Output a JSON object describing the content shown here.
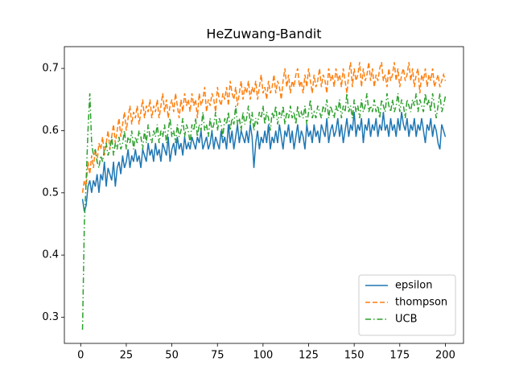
{
  "chart_data": {
    "type": "line",
    "title": "HeZuwang-Bandit",
    "x": [
      1,
      2,
      3,
      4,
      5,
      6,
      7,
      8,
      9,
      10,
      11,
      12,
      13,
      14,
      15,
      16,
      17,
      18,
      19,
      20,
      21,
      22,
      23,
      24,
      25,
      26,
      27,
      28,
      29,
      30,
      31,
      32,
      33,
      34,
      35,
      36,
      37,
      38,
      39,
      40,
      41,
      42,
      43,
      44,
      45,
      46,
      47,
      48,
      49,
      50,
      51,
      52,
      53,
      54,
      55,
      56,
      57,
      58,
      59,
      60,
      61,
      62,
      63,
      64,
      65,
      66,
      67,
      68,
      69,
      70,
      71,
      72,
      73,
      74,
      75,
      76,
      77,
      78,
      79,
      80,
      81,
      82,
      83,
      84,
      85,
      86,
      87,
      88,
      89,
      90,
      91,
      92,
      93,
      94,
      95,
      96,
      97,
      98,
      99,
      100,
      101,
      102,
      103,
      104,
      105,
      106,
      107,
      108,
      109,
      110,
      111,
      112,
      113,
      114,
      115,
      116,
      117,
      118,
      119,
      120,
      121,
      122,
      123,
      124,
      125,
      126,
      127,
      128,
      129,
      130,
      131,
      132,
      133,
      134,
      135,
      136,
      137,
      138,
      139,
      140,
      141,
      142,
      143,
      144,
      145,
      146,
      147,
      148,
      149,
      150,
      151,
      152,
      153,
      154,
      155,
      156,
      157,
      158,
      159,
      160,
      161,
      162,
      163,
      164,
      165,
      166,
      167,
      168,
      169,
      170,
      171,
      172,
      173,
      174,
      175,
      176,
      177,
      178,
      179,
      180,
      181,
      182,
      183,
      184,
      185,
      186,
      187,
      188,
      189,
      190,
      191,
      192,
      193,
      194,
      195,
      196,
      197,
      198,
      199,
      200
    ],
    "series": [
      {
        "name": "epsilon",
        "color": "#1f77b4",
        "linestyle": "solid",
        "values": [
          0.49,
          0.47,
          0.48,
          0.51,
          0.52,
          0.5,
          0.52,
          0.51,
          0.53,
          0.5,
          0.53,
          0.52,
          0.55,
          0.51,
          0.54,
          0.53,
          0.52,
          0.55,
          0.51,
          0.54,
          0.55,
          0.53,
          0.56,
          0.54,
          0.55,
          0.57,
          0.54,
          0.56,
          0.55,
          0.57,
          0.55,
          0.56,
          0.54,
          0.57,
          0.56,
          0.55,
          0.58,
          0.56,
          0.57,
          0.55,
          0.58,
          0.56,
          0.57,
          0.55,
          0.58,
          0.57,
          0.56,
          0.59,
          0.55,
          0.57,
          0.58,
          0.56,
          0.59,
          0.57,
          0.58,
          0.56,
          0.59,
          0.57,
          0.58,
          0.57,
          0.59,
          0.58,
          0.57,
          0.59,
          0.58,
          0.6,
          0.57,
          0.58,
          0.59,
          0.57,
          0.58,
          0.6,
          0.57,
          0.59,
          0.58,
          0.57,
          0.6,
          0.58,
          0.59,
          0.57,
          0.61,
          0.58,
          0.6,
          0.57,
          0.59,
          0.61,
          0.58,
          0.6,
          0.59,
          0.58,
          0.6,
          0.58,
          0.61,
          0.59,
          0.54,
          0.58,
          0.6,
          0.57,
          0.59,
          0.58,
          0.6,
          0.58,
          0.61,
          0.57,
          0.59,
          0.58,
          0.6,
          0.58,
          0.61,
          0.59,
          0.57,
          0.6,
          0.59,
          0.61,
          0.58,
          0.6,
          0.57,
          0.59,
          0.61,
          0.58,
          0.6,
          0.59,
          0.57,
          0.61,
          0.59,
          0.6,
          0.58,
          0.61,
          0.59,
          0.6,
          0.58,
          0.61,
          0.6,
          0.59,
          0.62,
          0.58,
          0.6,
          0.61,
          0.59,
          0.6,
          0.62,
          0.59,
          0.61,
          0.58,
          0.6,
          0.62,
          0.59,
          0.61,
          0.6,
          0.63,
          0.59,
          0.61,
          0.6,
          0.62,
          0.58,
          0.61,
          0.6,
          0.62,
          0.59,
          0.61,
          0.6,
          0.62,
          0.59,
          0.61,
          0.6,
          0.63,
          0.6,
          0.61,
          0.59,
          0.62,
          0.6,
          0.61,
          0.59,
          0.62,
          0.6,
          0.63,
          0.61,
          0.6,
          0.62,
          0.59,
          0.61,
          0.6,
          0.62,
          0.59,
          0.61,
          0.6,
          0.62,
          0.6,
          0.58,
          0.61,
          0.6,
          0.62,
          0.59,
          0.61,
          0.6,
          0.58,
          0.57,
          0.61,
          0.6,
          0.59
        ]
      },
      {
        "name": "thompson",
        "color": "#ff7f0e",
        "linestyle": "dashed",
        "values": [
          0.5,
          0.52,
          0.51,
          0.55,
          0.53,
          0.56,
          0.54,
          0.57,
          0.55,
          0.58,
          0.57,
          0.59,
          0.56,
          0.58,
          0.6,
          0.57,
          0.59,
          0.61,
          0.58,
          0.6,
          0.62,
          0.59,
          0.61,
          0.63,
          0.6,
          0.62,
          0.64,
          0.61,
          0.63,
          0.62,
          0.64,
          0.61,
          0.63,
          0.65,
          0.62,
          0.64,
          0.63,
          0.65,
          0.62,
          0.64,
          0.63,
          0.65,
          0.62,
          0.64,
          0.66,
          0.63,
          0.65,
          0.62,
          0.64,
          0.65,
          0.63,
          0.66,
          0.64,
          0.62,
          0.65,
          0.63,
          0.66,
          0.64,
          0.65,
          0.63,
          0.66,
          0.64,
          0.65,
          0.62,
          0.66,
          0.64,
          0.65,
          0.67,
          0.63,
          0.65,
          0.64,
          0.66,
          0.65,
          0.63,
          0.67,
          0.65,
          0.64,
          0.66,
          0.65,
          0.67,
          0.64,
          0.68,
          0.66,
          0.65,
          0.67,
          0.64,
          0.66,
          0.68,
          0.65,
          0.67,
          0.66,
          0.68,
          0.65,
          0.67,
          0.66,
          0.68,
          0.65,
          0.67,
          0.69,
          0.66,
          0.67,
          0.65,
          0.68,
          0.66,
          0.67,
          0.69,
          0.66,
          0.68,
          0.67,
          0.65,
          0.68,
          0.7,
          0.67,
          0.69,
          0.66,
          0.68,
          0.67,
          0.69,
          0.7,
          0.67,
          0.68,
          0.66,
          0.69,
          0.67,
          0.7,
          0.68,
          0.66,
          0.69,
          0.67,
          0.68,
          0.7,
          0.67,
          0.69,
          0.68,
          0.66,
          0.7,
          0.68,
          0.69,
          0.67,
          0.7,
          0.68,
          0.69,
          0.67,
          0.7,
          0.68,
          0.66,
          0.69,
          0.71,
          0.67,
          0.7,
          0.68,
          0.69,
          0.71,
          0.67,
          0.7,
          0.68,
          0.69,
          0.71,
          0.68,
          0.7,
          0.67,
          0.69,
          0.68,
          0.7,
          0.71,
          0.68,
          0.69,
          0.67,
          0.7,
          0.68,
          0.69,
          0.71,
          0.68,
          0.7,
          0.67,
          0.69,
          0.7,
          0.68,
          0.69,
          0.71,
          0.68,
          0.7,
          0.67,
          0.69,
          0.7,
          0.66,
          0.69,
          0.68,
          0.7,
          0.67,
          0.69,
          0.68,
          0.7,
          0.67,
          0.68,
          0.69,
          0.67,
          0.68,
          0.69,
          0.68
        ]
      },
      {
        "name": "UCB",
        "color": "#2ca02c",
        "linestyle": "dashdot",
        "values": [
          0.28,
          0.45,
          0.52,
          0.6,
          0.66,
          0.58,
          0.56,
          0.57,
          0.55,
          0.54,
          0.56,
          0.55,
          0.57,
          0.58,
          0.56,
          0.57,
          0.59,
          0.56,
          0.58,
          0.57,
          0.59,
          0.57,
          0.58,
          0.6,
          0.57,
          0.59,
          0.58,
          0.6,
          0.57,
          0.59,
          0.58,
          0.6,
          0.59,
          0.57,
          0.6,
          0.58,
          0.61,
          0.59,
          0.58,
          0.6,
          0.59,
          0.61,
          0.58,
          0.6,
          0.59,
          0.61,
          0.58,
          0.6,
          0.62,
          0.59,
          0.6,
          0.58,
          0.61,
          0.59,
          0.6,
          0.62,
          0.59,
          0.61,
          0.6,
          0.58,
          0.61,
          0.6,
          0.62,
          0.59,
          0.61,
          0.6,
          0.63,
          0.6,
          0.61,
          0.59,
          0.62,
          0.6,
          0.61,
          0.63,
          0.6,
          0.62,
          0.61,
          0.59,
          0.62,
          0.61,
          0.63,
          0.6,
          0.62,
          0.61,
          0.64,
          0.61,
          0.62,
          0.6,
          0.63,
          0.61,
          0.62,
          0.64,
          0.61,
          0.63,
          0.6,
          0.62,
          0.61,
          0.63,
          0.62,
          0.64,
          0.61,
          0.63,
          0.62,
          0.6,
          0.63,
          0.62,
          0.64,
          0.61,
          0.63,
          0.62,
          0.64,
          0.61,
          0.63,
          0.62,
          0.64,
          0.62,
          0.63,
          0.61,
          0.64,
          0.62,
          0.63,
          0.62,
          0.64,
          0.61,
          0.63,
          0.65,
          0.62,
          0.63,
          0.62,
          0.64,
          0.63,
          0.62,
          0.64,
          0.63,
          0.65,
          0.62,
          0.64,
          0.63,
          0.62,
          0.64,
          0.63,
          0.65,
          0.62,
          0.64,
          0.63,
          0.66,
          0.63,
          0.64,
          0.62,
          0.65,
          0.63,
          0.64,
          0.62,
          0.65,
          0.63,
          0.64,
          0.66,
          0.63,
          0.64,
          0.63,
          0.65,
          0.63,
          0.64,
          0.62,
          0.65,
          0.64,
          0.63,
          0.66,
          0.64,
          0.63,
          0.65,
          0.63,
          0.64,
          0.66,
          0.63,
          0.65,
          0.64,
          0.62,
          0.65,
          0.64,
          0.63,
          0.65,
          0.64,
          0.66,
          0.63,
          0.65,
          0.64,
          0.63,
          0.66,
          0.64,
          0.65,
          0.63,
          0.66,
          0.64,
          0.62,
          0.64,
          0.66,
          0.63,
          0.64,
          0.655
        ]
      }
    ],
    "xlim": [
      -8.95,
      209.95
    ],
    "xticks": [
      0,
      25,
      50,
      75,
      100,
      125,
      150,
      175,
      200
    ],
    "ylim": [
      0.258,
      0.735
    ],
    "yticks": [
      0.3,
      0.4,
      0.5,
      0.6,
      0.7
    ],
    "legend": "lower right",
    "grid": false
  }
}
